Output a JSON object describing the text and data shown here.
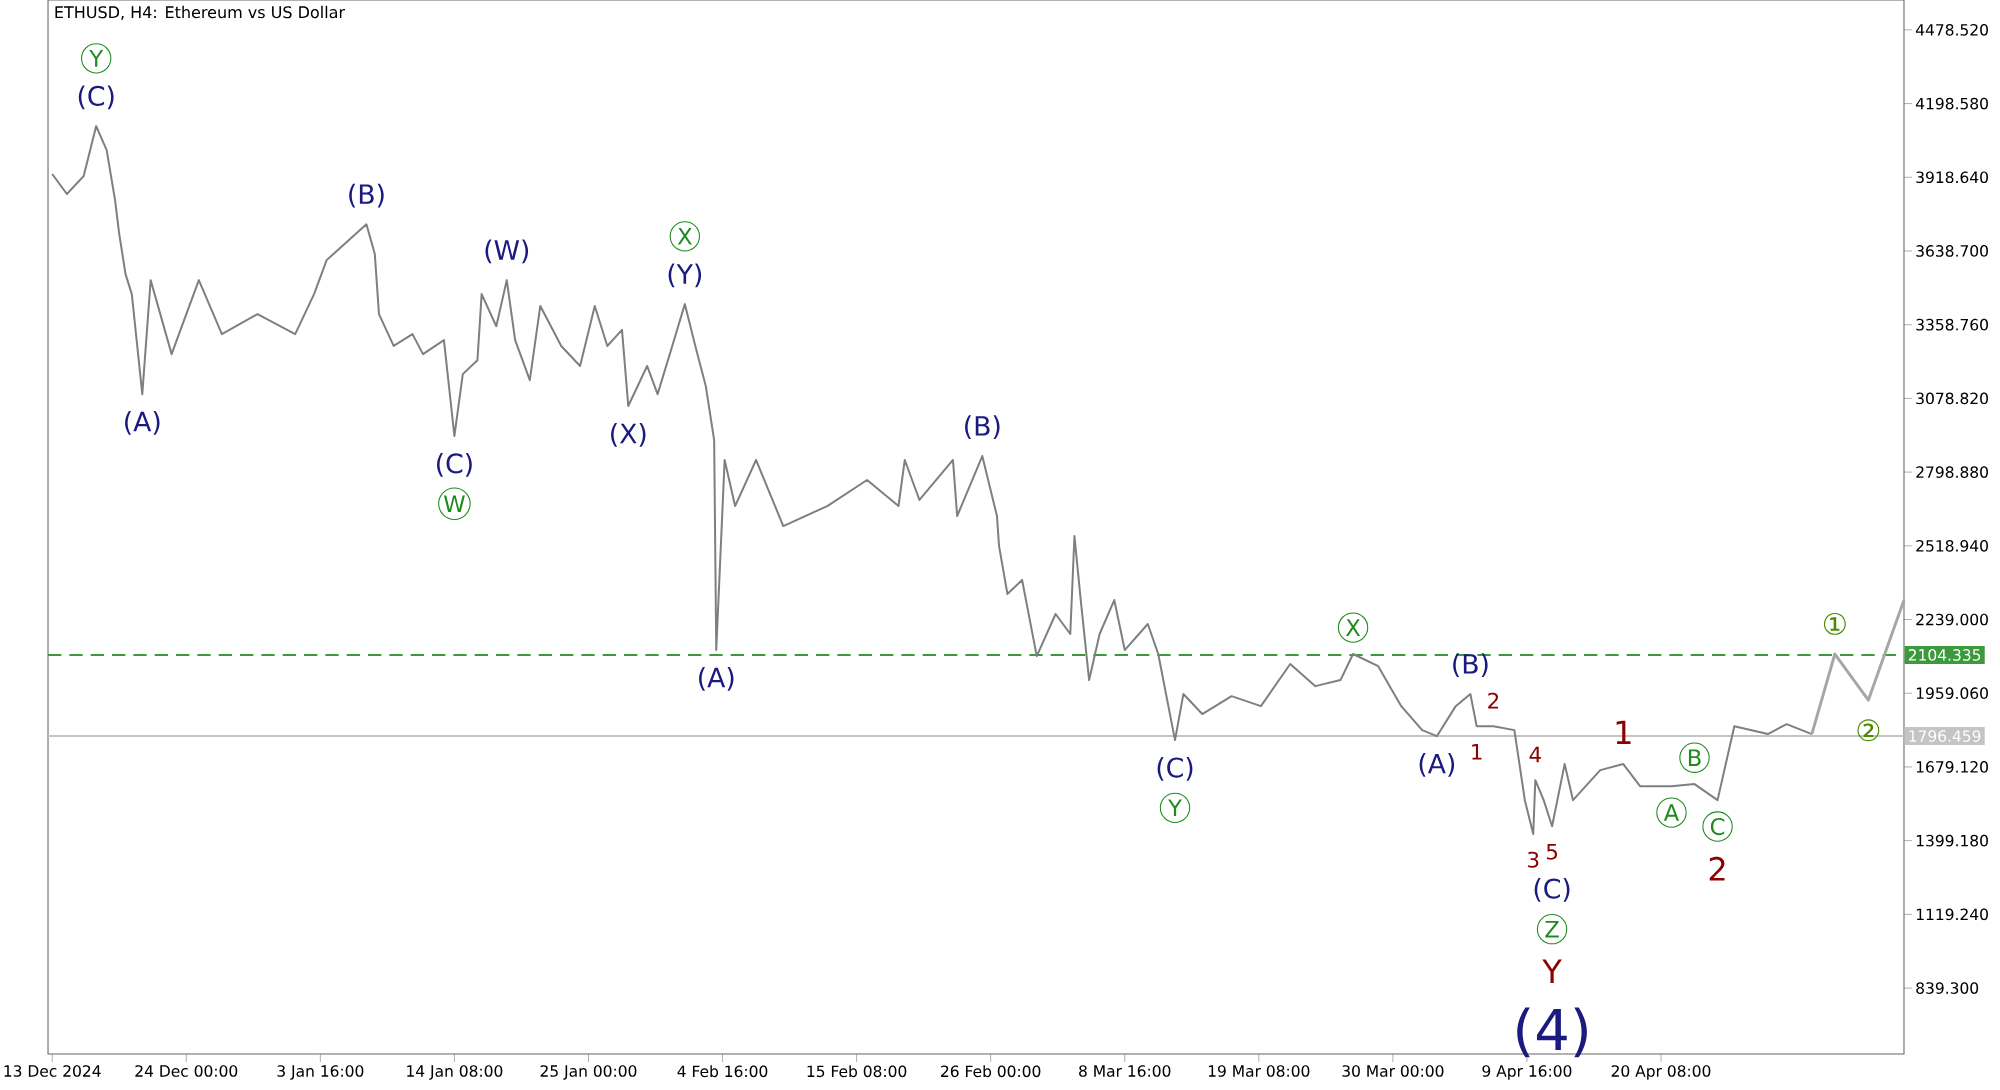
{
  "chart_data": {
    "type": "line",
    "title": "ETHUSD, H4:  Ethereum vs US Dollar",
    "xlim": [
      "2024-12-13T00:00",
      "2025-05-09T16:00"
    ],
    "xticks": [
      {
        "value": "2024-12-13T08:00",
        "label": "13 Dec 2024"
      },
      {
        "value": "2024-12-24T00:00",
        "label": "24 Dec 00:00"
      },
      {
        "value": "2025-01-03T16:00",
        "label": "3 Jan 16:00"
      },
      {
        "value": "2025-01-14T08:00",
        "label": "14 Jan 08:00"
      },
      {
        "value": "2025-01-25T00:00",
        "label": "25 Jan 00:00"
      },
      {
        "value": "2025-02-04T16:00",
        "label": "4 Feb 16:00"
      },
      {
        "value": "2025-02-15T08:00",
        "label": "15 Feb 08:00"
      },
      {
        "value": "2025-02-26T00:00",
        "label": "26 Feb 00:00"
      },
      {
        "value": "2025-03-08T16:00",
        "label": "8 Mar 16:00"
      },
      {
        "value": "2025-03-19T08:00",
        "label": "19 Mar 08:00"
      },
      {
        "value": "2025-03-30T00:00",
        "label": "30 Mar 00:00"
      },
      {
        "value": "2025-04-09T16:00",
        "label": "9 Apr 16:00"
      },
      {
        "value": "2025-04-20T08:00",
        "label": "20 Apr 08:00"
      }
    ],
    "ylim": [
      589,
      4592
    ],
    "yticks": [
      {
        "value": 839.3,
        "label": "839.300"
      },
      {
        "value": 1119.24,
        "label": "1119.240"
      },
      {
        "value": 1399.18,
        "label": "1399.180"
      },
      {
        "value": 1679.12,
        "label": "1679.120"
      },
      {
        "value": 1959.06,
        "label": "1959.060"
      },
      {
        "value": 2239,
        "label": "2239.000"
      },
      {
        "value": 2518.94,
        "label": "2518.940"
      },
      {
        "value": 2798.88,
        "label": "2798.880"
      },
      {
        "value": 3078.82,
        "label": "3078.820"
      },
      {
        "value": 3358.76,
        "label": "3358.760"
      },
      {
        "value": 3638.7,
        "label": "3638.700"
      },
      {
        "value": 3918.64,
        "label": "3918.640"
      },
      {
        "value": 4198.58,
        "label": "4198.580"
      },
      {
        "value": 4478.52,
        "label": "4478.520"
      }
    ],
    "ref_lines": [
      {
        "axis": "y",
        "value": 2104.335,
        "label": "2104.335",
        "color": "#3c9a3c",
        "line_style": "dashed"
      },
      {
        "axis": "y",
        "value": 1796.459,
        "label": "1796.459",
        "color": "#c4c4c4",
        "line_style": "solid"
      }
    ],
    "series": [
      {
        "color": "#7f7f7f",
        "x": [
          "2024-12-13T08:00",
          "2024-12-14T12:00",
          "2024-12-15T20:00",
          "2024-12-16T20:00",
          "2024-12-17T16:00",
          "2024-12-18T08:00",
          "2024-12-18T16:00",
          "2024-12-19T04:00",
          "2024-12-19T16:00",
          "2024-12-20T12:00",
          "2024-12-21T04:00",
          "2024-12-22T20:00",
          "2024-12-25T00:00",
          "2024-12-26T20:00",
          "2024-12-29T16:00",
          "2025-01-01T16:00",
          "2025-01-03T04:00",
          "2025-01-04T04:00",
          "2025-01-07T08:00",
          "2025-01-08T00:00",
          "2025-01-08T08:00",
          "2025-01-09T12:00",
          "2025-01-11T00:00",
          "2025-01-11T20:00",
          "2025-01-13T12:00",
          "2025-01-14T08:00",
          "2025-01-15T00:00",
          "2025-01-16T04:00",
          "2025-01-16T12:00",
          "2025-01-17T16:00",
          "2025-01-18T12:00",
          "2025-01-19T04:00",
          "2025-01-20T08:00",
          "2025-01-21T04:00",
          "2025-01-22T20:00",
          "2025-01-24T08:00",
          "2025-01-25T12:00",
          "2025-01-26T12:00",
          "2025-01-27T16:00",
          "2025-01-28T04:00",
          "2025-01-29T16:00",
          "2025-01-30T12:00",
          "2025-01-31T16:00",
          "2025-02-01T16:00",
          "2025-02-02T12:00",
          "2025-02-03T08:00",
          "2025-02-04T00:00",
          "2025-02-04T04:00",
          "2025-02-04T20:00",
          "2025-02-05T16:00",
          "2025-02-07T08:00",
          "2025-02-09T12:00",
          "2025-02-13T00:00",
          "2025-02-16T04:00",
          "2025-02-18T16:00",
          "2025-02-19T04:00",
          "2025-02-20T08:00",
          "2025-02-23T00:00",
          "2025-02-23T08:00",
          "2025-02-25T08:00",
          "2025-02-26T12:00",
          "2025-02-26T16:00",
          "2025-02-27T08:00",
          "2025-02-28T12:00",
          "2025-03-01T16:00",
          "2025-03-03T04:00",
          "2025-03-04T08:00",
          "2025-03-04T16:00",
          "2025-03-05T04:00",
          "2025-03-05T20:00",
          "2025-03-06T16:00",
          "2025-03-07T20:00",
          "2025-03-08T16:00",
          "2025-03-10T12:00",
          "2025-03-11T08:00",
          "2025-03-12T16:00",
          "2025-03-13T08:00",
          "2025-03-14T20:00",
          "2025-03-17T04:00",
          "2025-03-19T12:00",
          "2025-03-21T20:00",
          "2025-03-23T20:00",
          "2025-03-25T20:00",
          "2025-03-26T20:00",
          "2025-03-28T20:00",
          "2025-03-30T16:00",
          "2025-04-01T08:00",
          "2025-04-02T12:00",
          "2025-04-04T00:00",
          "2025-04-05T04:00",
          "2025-04-05T16:00",
          "2025-04-07T00:00",
          "2025-04-08T16:00",
          "2025-04-09T12:00",
          "2025-04-10T04:00",
          "2025-04-10T08:00",
          "2025-04-11T00:00",
          "2025-04-11T16:00",
          "2025-04-12T16:00",
          "2025-04-13T08:00",
          "2025-04-15T12:00",
          "2025-04-17T08:00",
          "2025-04-18T16:00",
          "2025-04-21T04:00",
          "2025-04-23T00:00",
          "2025-04-24T20:00",
          "2025-04-26T04:00",
          "2025-04-28T20:00",
          "2025-04-30T08:00",
          "2025-05-02T08:00"
        ],
        "values": [
          3931,
          3855,
          3923,
          4113,
          4022,
          3832,
          3703,
          3551,
          3475,
          3095,
          3528,
          3247,
          3528,
          3323,
          3399,
          3323,
          3475,
          3604,
          3740,
          3627,
          3399,
          3278,
          3323,
          3247,
          3300,
          2936,
          3171,
          3224,
          3475,
          3353,
          3528,
          3300,
          3148,
          3430,
          3278,
          3202,
          3430,
          3278,
          3339,
          3050,
          3202,
          3095,
          3278,
          3437,
          3278,
          3126,
          2920,
          2123,
          2845,
          2670,
          2845,
          2594,
          2670,
          2769,
          2670,
          2845,
          2693,
          2845,
          2632,
          2860,
          2632,
          2518,
          2336,
          2389,
          2100,
          2260,
          2184,
          2556,
          2313,
          2009,
          2184,
          2313,
          2123,
          2222,
          2108,
          1781,
          1956,
          1880,
          1948,
          1910,
          2070,
          1986,
          2009,
          2108,
          2062,
          1910,
          1819,
          1796,
          1910,
          1956,
          1834,
          1834,
          1819,
          1553,
          1424,
          1629,
          1553,
          1454,
          1690,
          1553,
          1667,
          1690,
          1606,
          1606,
          1614,
          1553,
          1834,
          1804,
          1842,
          1804
        ]
      },
      {
        "color": "#a6a6a6",
        "x": [
          "2025-05-02T08:00",
          "2025-05-04T04:00",
          "2025-05-06T20:00",
          "2025-05-09T16:00"
        ],
        "values": [
          1804,
          2108,
          1933,
          2313
        ]
      }
    ],
    "annotations": [
      {
        "text": "(C)",
        "x": "2024-12-16T20:00",
        "y": 4113
      },
      "Y",
      {
        "text": "(A)",
        "x": "2024-12-20T12:00",
        "y": 3095
      },
      {
        "text": "(B)",
        "x": "2025-01-07T08:00",
        "y": 3740
      },
      {
        "text": "(W)",
        "x": "2025-01-18T12:00",
        "y": 3528
      },
      {
        "text": "(C)",
        "x": "2025-01-14T08:00",
        "y": 2936
      },
      "W",
      {
        "text": "(Y)",
        "x": "2025-02-01T16:00",
        "y": 3437
      },
      "X",
      {
        "text": "(X)",
        "x": "2025-01-28T04:00",
        "y": 3050
      },
      {
        "text": "(A)",
        "x": "2025-02-04T04:00",
        "y": 2123
      },
      {
        "text": "(B)",
        "x": "2025-02-25T08:00",
        "y": 2860
      },
      {
        "text": "(C)",
        "x": "2025-03-12T16:00",
        "y": 1781
      },
      "Y",
      {
        "text": "X",
        "x": "2025-03-26T20:00",
        "y": 2108
      },
      {
        "text": "(B)",
        "x": "2025-04-05T04:00",
        "y": 1956
      },
      {
        "text": "(A)",
        "x": "2025-04-02T12:00",
        "y": 1796
      },
      {
        "text": "2",
        "x": "2025-04-07T00:00",
        "y": 1834
      },
      {
        "text": "1",
        "x": "2025-04-05T16:00",
        "y": 1834
      },
      {
        "text": "4",
        "x": "2025-04-10T08:00",
        "y": 1629
      },
      {
        "text": "3",
        "x": "2025-04-10T04:00",
        "y": 1424
      },
      {
        "text": "5",
        "x": "2025-04-11T16:00",
        "y": 1454
      },
      "(C)",
      "Z",
      "Y",
      "(4)",
      {
        "text": "1",
        "x": "2025-04-17T08:00",
        "y": 1690
      },
      {
        "text": "A",
        "x": "2025-04-21T04:00",
        "y": 1606
      },
      {
        "text": "B",
        "x": "2025-04-23T00:00",
        "y": 1614
      },
      {
        "text": "C",
        "x": "2025-04-24T20:00",
        "y": 1553
      },
      "2",
      {
        "text": "①",
        "x": "2025-05-04T04:00",
        "y": 2108
      },
      {
        "text": "②",
        "x": "2025-05-06T20:00",
        "y": 1933
      }
    ]
  }
}
